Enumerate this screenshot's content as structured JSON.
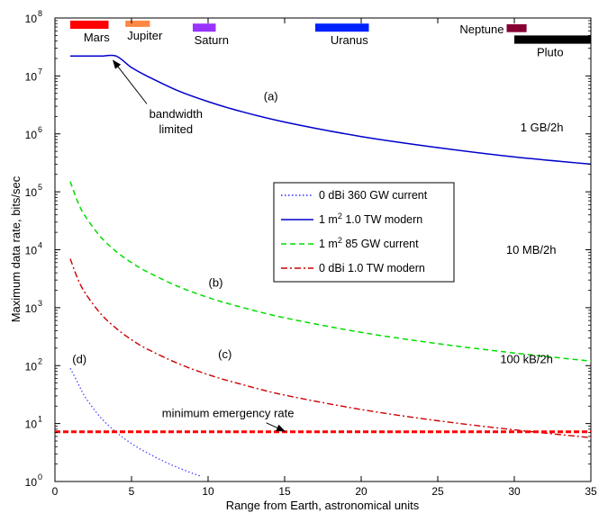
{
  "chart_data": {
    "type": "line",
    "title": "",
    "xlabel": "Range from Earth, astronomical units",
    "ylabel": "Maximum data rate, bits/sec",
    "xlim": [
      0,
      35
    ],
    "ylim": [
      1,
      100000000
    ],
    "yscale": "log",
    "grid": false,
    "legend_position": "center",
    "x_ticks": [
      "0",
      "5",
      "10",
      "15",
      "20",
      "25",
      "30",
      "35"
    ],
    "y_ticks": [
      {
        "base": "10",
        "exp": "0"
      },
      {
        "base": "10",
        "exp": "1"
      },
      {
        "base": "10",
        "exp": "2"
      },
      {
        "base": "10",
        "exp": "3"
      },
      {
        "base": "10",
        "exp": "4"
      },
      {
        "base": "10",
        "exp": "5"
      },
      {
        "base": "10",
        "exp": "6"
      },
      {
        "base": "10",
        "exp": "7"
      },
      {
        "base": "10",
        "exp": "8"
      }
    ],
    "legend": [
      {
        "pre": "0 dBi 360 GW current",
        "sup": "",
        "post": "",
        "color": "#0000ff",
        "dash": "dotted"
      },
      {
        "pre": "1 m",
        "sup": "2",
        "post": " 1.0 TW modern",
        "color": "#0000cc",
        "dash": "solid"
      },
      {
        "pre": "1 m",
        "sup": "2",
        "post": " 85 GW current",
        "color": "#00dd00",
        "dash": "dashed"
      },
      {
        "pre": "0 dBi 1.0 TW modern",
        "sup": "",
        "post": "",
        "color": "#cc0000",
        "dash": "dashdot"
      }
    ],
    "series": [
      {
        "id": "d",
        "color": "#4444ff",
        "dash": "dotted",
        "x": [
          1,
          1.5,
          2,
          3,
          4,
          5,
          6,
          7,
          8,
          9,
          9.5
        ],
        "y": [
          90,
          50,
          28,
          12.6,
          7.1,
          4.5,
          3.15,
          2.3,
          1.75,
          1.38,
          1.24
        ]
      },
      {
        "id": "a",
        "color": "#0000cc",
        "dash": "solid",
        "x": [
          1,
          2,
          3,
          4,
          5,
          6,
          8,
          10,
          12,
          15,
          20,
          25,
          30,
          35
        ],
        "y": [
          22000000,
          22000000,
          22000000,
          22000000,
          14000000,
          10000000,
          5600000,
          3600000,
          2500000,
          1600000,
          900000,
          580000,
          400000,
          300000
        ]
      },
      {
        "id": "b",
        "color": "#00dd00",
        "dash": "dashed",
        "x": [
          1,
          1.5,
          2,
          3,
          4,
          5,
          6,
          8,
          10,
          12,
          15,
          20,
          25,
          30,
          35
        ],
        "y": [
          150000,
          66000,
          37000,
          16500,
          9300,
          6000,
          4200,
          2350,
          1500,
          1050,
          670,
          375,
          240,
          165,
          120
        ]
      },
      {
        "id": "c",
        "color": "#cc0000",
        "dash": "dashdot",
        "x": [
          1,
          1.5,
          2,
          3,
          4,
          5,
          6,
          8,
          10,
          12,
          15,
          20,
          25,
          30,
          35
        ],
        "y": [
          7000,
          3100,
          1750,
          780,
          440,
          280,
          195,
          110,
          70,
          49,
          31,
          17.5,
          11.2,
          7.8,
          5.7
        ]
      },
      {
        "id": "min",
        "color": "#ff0000",
        "dash": "heavydash",
        "x": [
          0,
          35
        ],
        "y": [
          7.2,
          7.2
        ]
      }
    ],
    "planets": [
      {
        "name": "Mars",
        "x0": 1.0,
        "x1": 3.5,
        "y_top": 90000000,
        "y_bottom": 65000000,
        "color": "#ff0000"
      },
      {
        "name": "Jupiter",
        "x0": 4.6,
        "x1": 6.2,
        "y_top": 90000000,
        "y_bottom": 70000000,
        "color": "#ff8844"
      },
      {
        "name": "Saturn",
        "x0": 9.0,
        "x1": 10.5,
        "y_top": 80000000,
        "y_bottom": 58000000,
        "color": "#9933ff"
      },
      {
        "name": "Uranus",
        "x0": 17.0,
        "x1": 20.5,
        "y_top": 80000000,
        "y_bottom": 58000000,
        "color": "#0022ff"
      },
      {
        "name": "Neptune",
        "x0": 29.5,
        "x1": 30.8,
        "y_top": 78000000,
        "y_bottom": 57000000,
        "color": "#880033"
      },
      {
        "name": "Pluto",
        "x0": 30.0,
        "x1": 35.0,
        "y_top": 50000000,
        "y_bottom": 36000000,
        "color": "#000000"
      }
    ],
    "annotations": {
      "series_labels": [
        {
          "text": "(a)",
          "x": 14.1,
          "y": 3800000
        },
        {
          "text": "(b)",
          "x": 10.5,
          "y": 2300
        },
        {
          "text": "(c)",
          "x": 11.1,
          "y": 135
        },
        {
          "text": "(d)",
          "x": 1.6,
          "y": 110
        }
      ],
      "rate_labels": [
        {
          "text": "1 GB/2h",
          "x": 31.8,
          "y": 1100000
        },
        {
          "text": "10 MB/2h",
          "x": 31.1,
          "y": 8500
        },
        {
          "text": "100 kB/2h",
          "x": 30.8,
          "y": 110
        }
      ],
      "bandwidth_line1": "bandwidth",
      "bandwidth_line2": "limited",
      "bandwidth_text_x": 7.9,
      "bandwidth_text_y": 1900000,
      "bandwidth_arrow_from": [
        6.0,
        3300000
      ],
      "bandwidth_arrow_to": [
        3.8,
        18500000
      ],
      "emergency_text": "minimum emergency rate",
      "emergency_text_x": 11.3,
      "emergency_text_y": 13000,
      "emergency_text_y_val": 13,
      "emergency_arrow_from": [
        13.8,
        10.3
      ],
      "emergency_arrow_to": [
        15.0,
        7.4
      ]
    }
  }
}
